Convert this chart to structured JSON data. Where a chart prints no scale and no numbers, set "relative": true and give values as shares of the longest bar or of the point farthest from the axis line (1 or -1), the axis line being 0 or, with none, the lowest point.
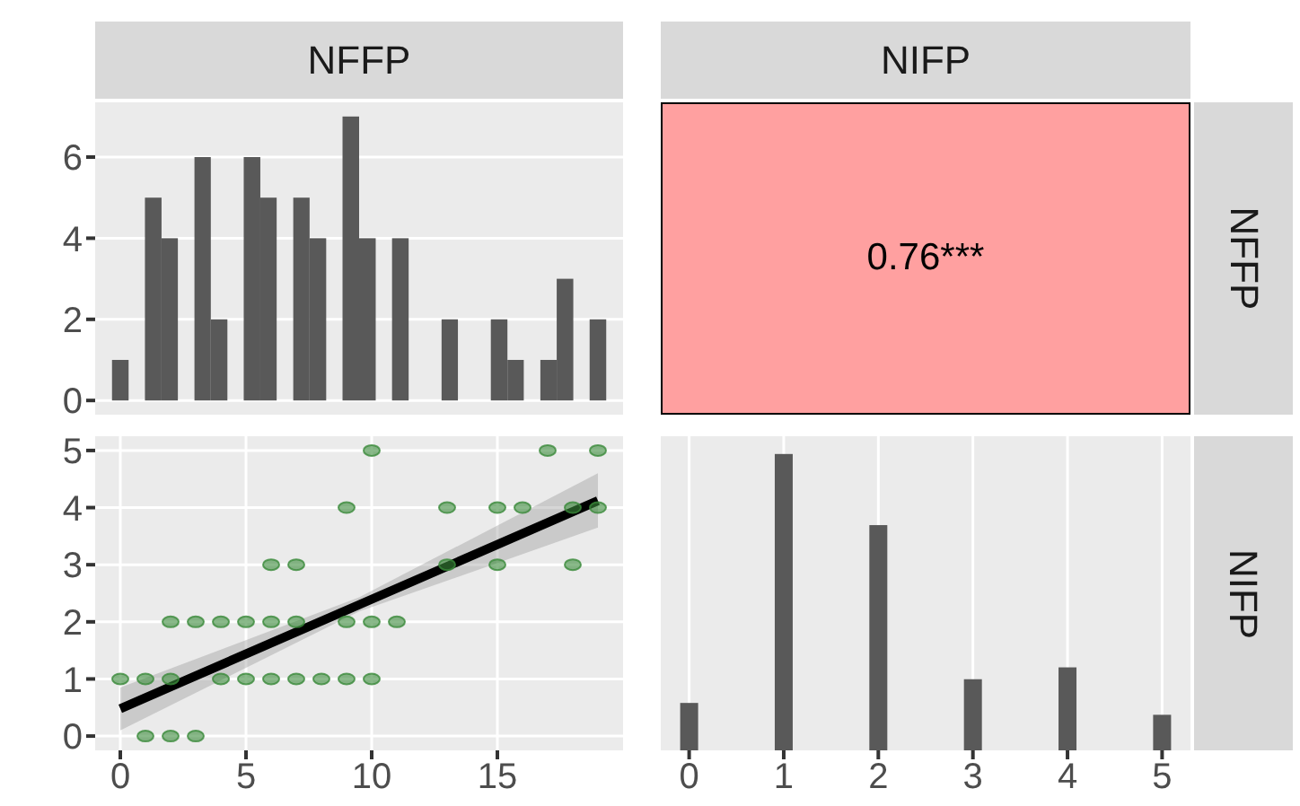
{
  "chart_data": [
    {
      "type": "histogram",
      "title": "NFFP",
      "bins": [
        -0.33,
        0.33,
        0.98,
        1.64,
        2.29,
        2.95,
        3.6,
        4.26,
        4.91,
        5.57,
        6.22,
        6.88,
        7.53,
        8.19,
        8.84,
        9.5,
        10.16,
        10.81,
        11.47,
        12.12,
        12.78,
        13.43,
        14.09,
        14.74,
        15.4,
        16.05,
        16.71,
        17.36,
        18.02,
        18.67,
        19.33
      ],
      "values": [
        1,
        0,
        5,
        4,
        0,
        6,
        2,
        0,
        6,
        5,
        0,
        5,
        4,
        0,
        7,
        4,
        0,
        4,
        0,
        0,
        2,
        0,
        0,
        2,
        1,
        0,
        1,
        3,
        0,
        2
      ],
      "color": "#595959",
      "xlim": [
        -1,
        20
      ],
      "ylim": [
        -0.35,
        7.35
      ],
      "yticks": [
        0,
        2,
        4,
        6
      ],
      "grid": true,
      "tick_labels": "y"
    },
    {
      "type": "other",
      "title": "NIFP",
      "y2label": "NFFP",
      "annotations": [
        "0.76***"
      ],
      "color": "#ffa0a0"
    },
    {
      "type": "scatter",
      "series": [
        {
          "type": "scatter",
          "color": "#3a8a3a",
          "marker": "circle",
          "x": [
            10,
            17,
            19,
            9,
            13,
            15,
            16,
            18,
            19,
            6,
            7,
            13,
            15,
            18,
            2,
            3,
            4,
            5,
            6,
            7,
            9,
            10,
            11,
            0,
            1,
            2,
            4,
            5,
            6,
            7,
            8,
            9,
            10,
            1,
            2,
            3
          ],
          "values": [
            5,
            5,
            5,
            4,
            4,
            4,
            4,
            4,
            4,
            3,
            3,
            3,
            3,
            3,
            2,
            2,
            2,
            2,
            2,
            2,
            2,
            2,
            2,
            1,
            1,
            1,
            1,
            1,
            1,
            1,
            1,
            1,
            1,
            0,
            0,
            0
          ]
        },
        {
          "type": "line",
          "color": "#000000",
          "marker": "none",
          "x": [
            0,
            9.5,
            19
          ],
          "values": [
            0.48,
            2.3,
            4.12
          ],
          "lower": [
            0.1,
            2.18,
            3.65
          ],
          "upper": [
            0.85,
            2.43,
            4.6
          ]
        }
      ],
      "xlim": [
        -1,
        20
      ],
      "xticks": [
        0,
        5,
        10,
        15
      ],
      "ylim": [
        -0.25,
        5.25
      ],
      "yticks": [
        0,
        1,
        2,
        3,
        4,
        5
      ],
      "grid": true
    },
    {
      "type": "bar",
      "y2label": "NIFP",
      "x": [
        0,
        1,
        2,
        3,
        4,
        5
      ],
      "values": [
        0.16,
        1,
        0.76,
        0.24,
        0.28,
        0.12
      ],
      "relative": true,
      "color": "#595959",
      "xlim": [
        -0.3,
        5.3
      ],
      "xticks": [
        0,
        1,
        2,
        3,
        4,
        5
      ],
      "grid": "x",
      "tick_labels": "x"
    }
  ]
}
